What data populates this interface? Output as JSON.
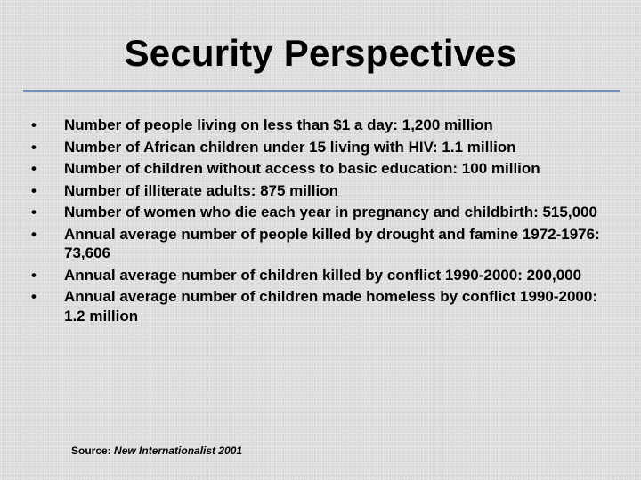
{
  "slide": {
    "title": "Security Perspectives",
    "bullet_char": "•",
    "bullets": [
      "Number of people living on less than $1 a day:  1,200 million",
      "Number of African children under 15 living with HIV:  1.1 million",
      "Number of children without access to basic education:  100 million",
      "Number of illiterate adults:  875 million",
      "Number of women who die each year in pregnancy and childbirth:  515,000",
      "Annual average number of people killed by drought and famine 1972-1976:  73,606",
      "Annual average number of children killed by conflict 1990-2000:  200,000",
      "Annual average number of children made homeless by conflict 1990-2000:  1.2 million"
    ],
    "source_label": "Source:",
    "source_publication": "New Internationalist 2001",
    "rule_color": "#6e8fbf",
    "background_color": "#dcdcdc"
  }
}
